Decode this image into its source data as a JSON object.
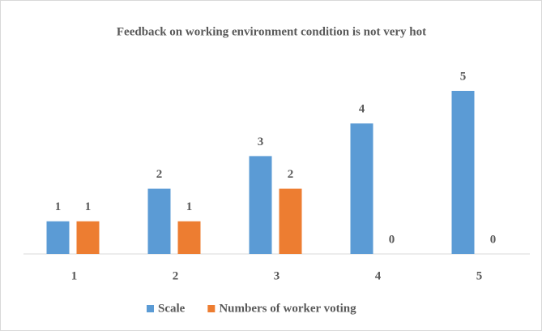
{
  "chart_data": {
    "type": "bar",
    "title": "Feedback on working environment condition is not very hot",
    "categories": [
      "1",
      "2",
      "3",
      "4",
      "5"
    ],
    "series": [
      {
        "name": "Scale",
        "color": "#5b9bd5",
        "values": [
          1,
          2,
          3,
          4,
          5
        ]
      },
      {
        "name": "Numbers of worker voting",
        "color": "#ed7d31",
        "values": [
          1,
          1,
          2,
          0,
          0
        ]
      }
    ],
    "legend": "bottom"
  }
}
